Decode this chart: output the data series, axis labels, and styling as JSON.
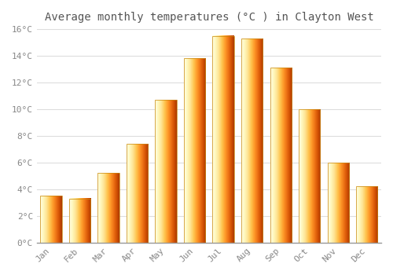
{
  "title": "Average monthly temperatures (°C ) in Clayton West",
  "months": [
    "Jan",
    "Feb",
    "Mar",
    "Apr",
    "May",
    "Jun",
    "Jul",
    "Aug",
    "Sep",
    "Oct",
    "Nov",
    "Dec"
  ],
  "values": [
    3.5,
    3.3,
    5.2,
    7.4,
    10.7,
    13.8,
    15.5,
    15.3,
    13.1,
    10.0,
    6.0,
    4.2
  ],
  "bar_color_left": "#FFD966",
  "bar_color_right": "#F5A623",
  "bar_edge_color": "#C8860A",
  "background_color": "#FFFFFF",
  "grid_color": "#DDDDDD",
  "ylim": [
    0,
    16
  ],
  "ytick_step": 2,
  "title_fontsize": 10,
  "tick_fontsize": 8,
  "tick_color": "#888888",
  "font_family": "monospace"
}
